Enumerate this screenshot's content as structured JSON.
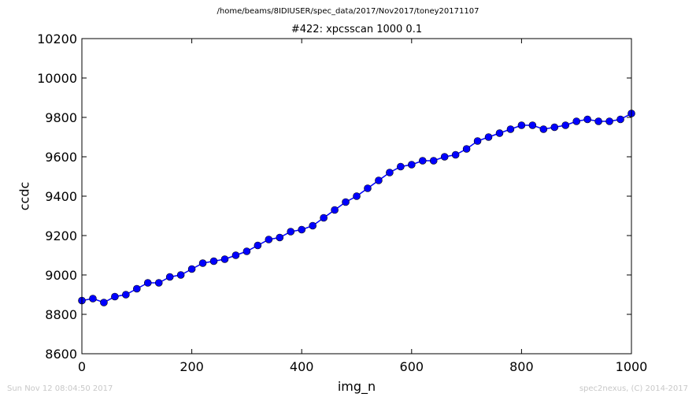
{
  "header": {
    "suptitle": "/home/beams/8IDIUSER/spec_data/2017/Nov2017/toney20171107",
    "title": "#422: xpcsscan 1000 0.1"
  },
  "footer": {
    "timestamp": "Sun Nov 12 08:04:50 2017",
    "credit": "spec2nexus, (C) 2014-2017"
  },
  "chart_data": {
    "type": "line",
    "title": "#422: xpcsscan 1000 0.1",
    "xlabel": "img_n",
    "ylabel": "ccdc",
    "xlim": [
      0,
      1000
    ],
    "ylim": [
      8600,
      10200
    ],
    "xticks": [
      0,
      200,
      400,
      600,
      800,
      1000
    ],
    "yticks": [
      8600,
      8800,
      9000,
      9200,
      9400,
      9600,
      9800,
      10000,
      10200
    ],
    "grid": false,
    "markers": true,
    "series_color": "#0000ff",
    "series": [
      {
        "x": [
          0,
          20,
          40,
          60,
          80,
          100,
          120,
          140,
          160,
          180,
          200,
          220,
          240,
          260,
          280,
          300,
          320,
          340,
          360,
          380,
          400,
          420,
          440,
          460,
          480,
          500,
          520,
          540,
          560,
          580,
          600,
          620,
          640,
          660,
          680,
          700,
          720,
          740,
          760,
          780,
          800,
          820,
          840,
          860,
          880,
          900,
          920,
          940,
          960,
          980,
          1000
        ],
        "y": [
          8870,
          8880,
          8860,
          8890,
          8900,
          8930,
          8960,
          8960,
          8990,
          9000,
          9030,
          9060,
          9070,
          9080,
          9100,
          9120,
          9150,
          9180,
          9190,
          9220,
          9230,
          9250,
          9290,
          9330,
          9370,
          9400,
          9440,
          9480,
          9520,
          9550,
          9560,
          9580,
          9580,
          9600,
          9610,
          9640,
          9680,
          9700,
          9720,
          9740,
          9760,
          9760,
          9740,
          9750,
          9760,
          9780,
          9790,
          9780,
          9780,
          9790,
          9820
        ]
      }
    ]
  }
}
